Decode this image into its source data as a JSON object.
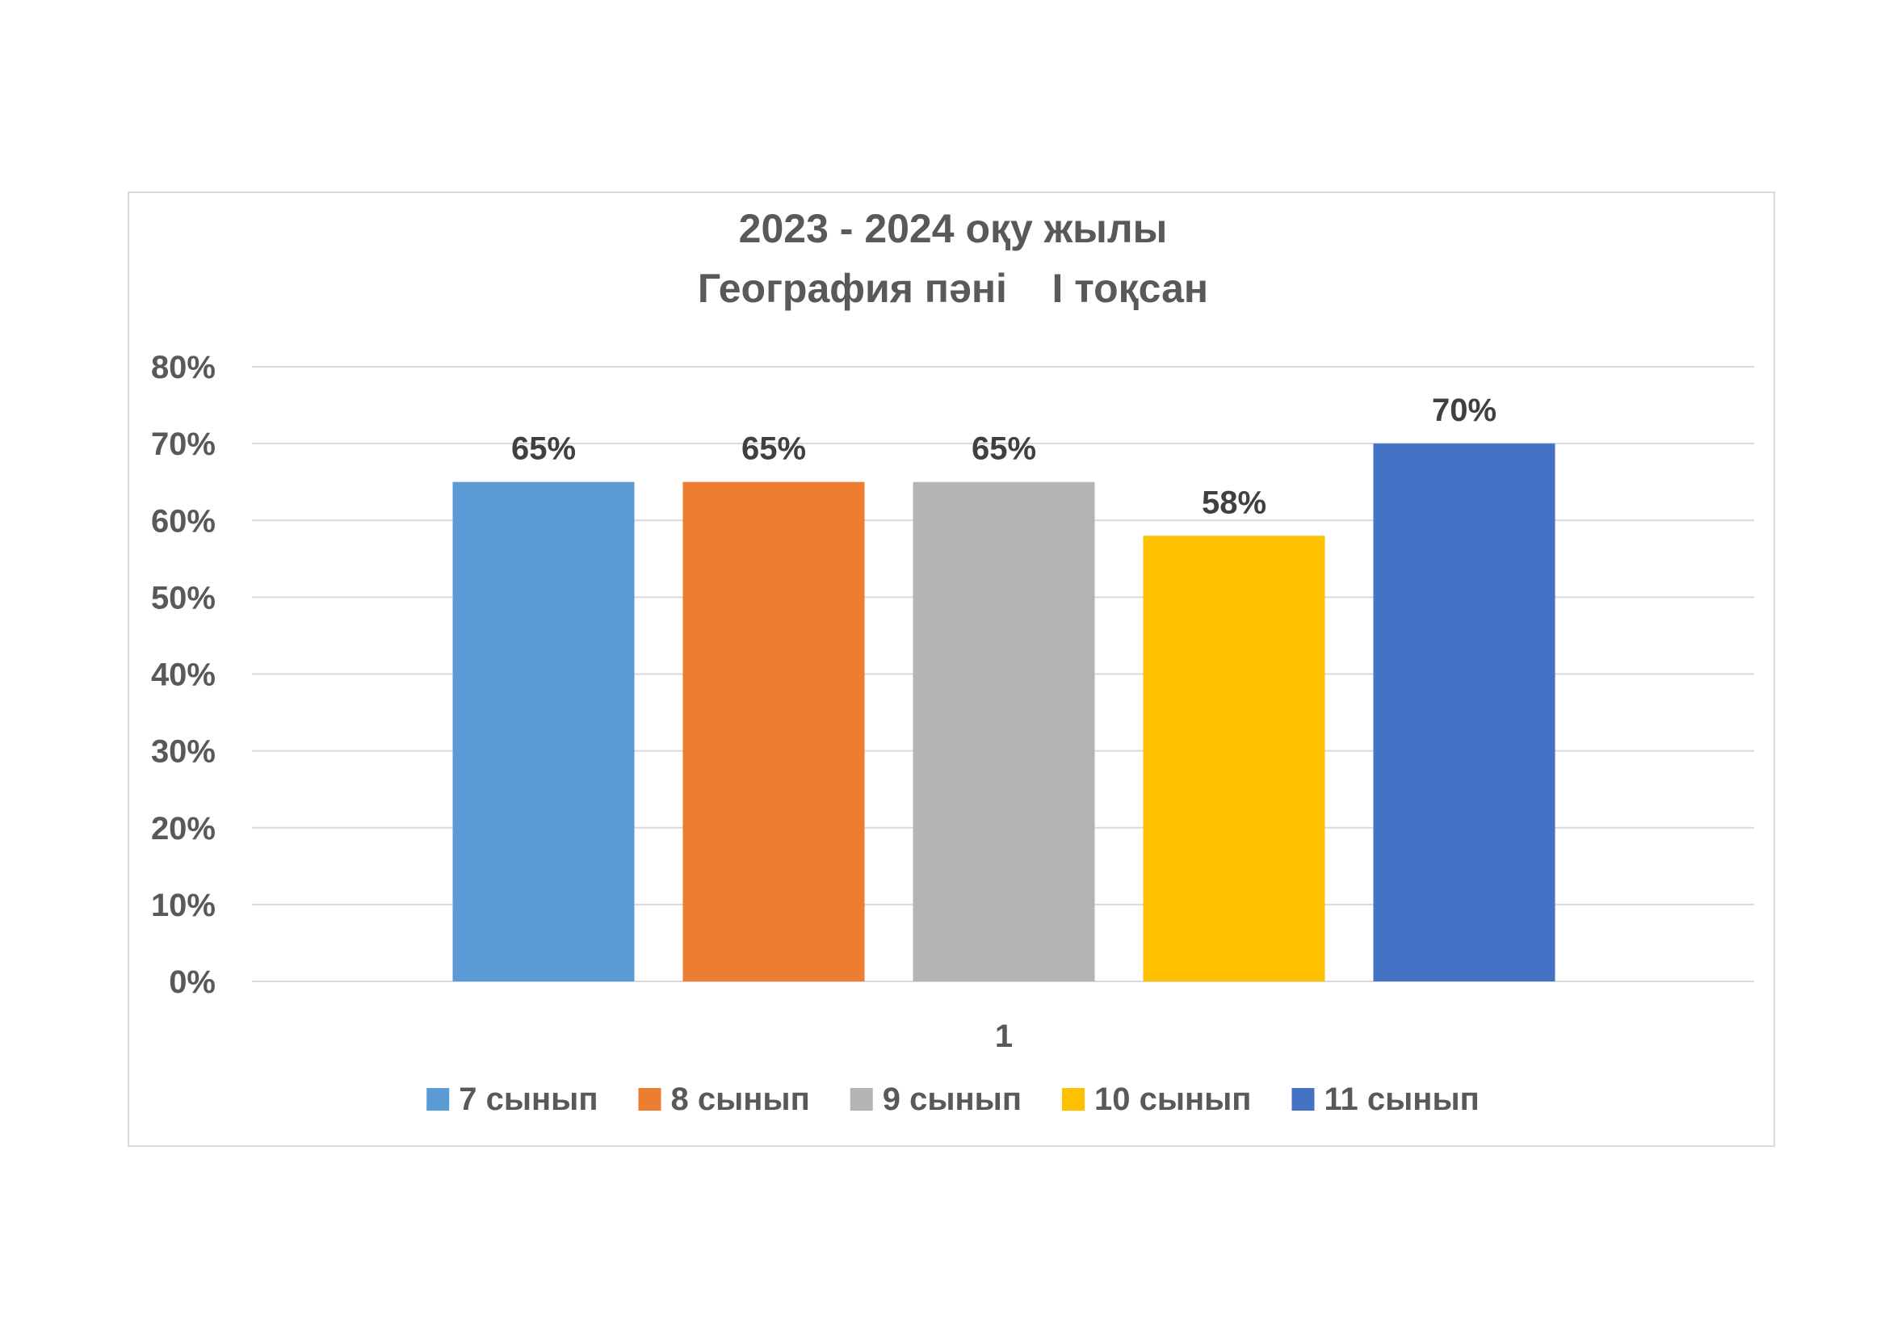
{
  "chart_data": {
    "type": "bar",
    "title": [
      "2023 - 2024 оқу жылы",
      "География пәні    І тоқсан"
    ],
    "categories": [
      "1"
    ],
    "series": [
      {
        "name": "7 сынып",
        "values": [
          0.65
        ],
        "label": "65%",
        "color": "#5b9bd5"
      },
      {
        "name": "8 сынып",
        "values": [
          0.65
        ],
        "label": "65%",
        "color": "#ed7d31"
      },
      {
        "name": "9 сынып",
        "values": [
          0.65
        ],
        "label": "65%",
        "color": "#b4b4b4"
      },
      {
        "name": "10 сынып",
        "values": [
          0.58
        ],
        "label": "58%",
        "color": "#ffc000"
      },
      {
        "name": "11 сынып",
        "values": [
          0.7
        ],
        "label": "70%",
        "color": "#4472c4"
      }
    ],
    "ylim": [
      0,
      0.8
    ],
    "yticks": [
      0,
      0.1,
      0.2,
      0.3,
      0.4,
      0.5,
      0.6,
      0.7,
      0.8
    ],
    "ytick_labels": [
      "0%",
      "10%",
      "20%",
      "30%",
      "40%",
      "50%",
      "60%",
      "70%",
      "80%"
    ],
    "grid": true,
    "legend_position": "bottom"
  }
}
